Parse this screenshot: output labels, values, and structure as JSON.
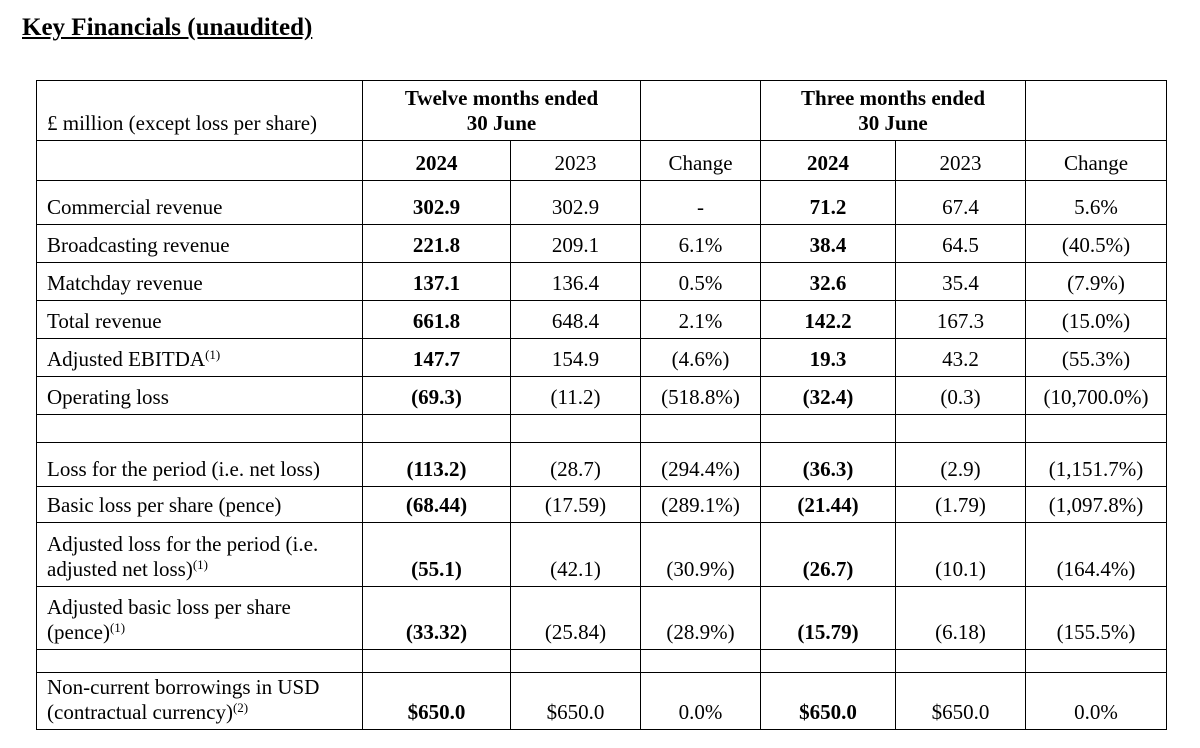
{
  "header": {
    "title": "Key Financials (unaudited)"
  },
  "table": {
    "unit_label": "£ million (except loss per share)",
    "period_headers": [
      [
        "Twelve months ended",
        "30 June"
      ],
      [
        "Three months ended",
        "30 June"
      ]
    ],
    "column_headers": [
      "2024",
      "2023",
      "Change",
      "2024",
      "2023",
      "Change"
    ],
    "groups": [
      [
        {
          "label": "Commercial revenue",
          "values": [
            "302.9",
            "302.9",
            "-",
            "71.2",
            "67.4",
            "5.6%"
          ]
        },
        {
          "label": "Broadcasting revenue",
          "values": [
            "221.8",
            "209.1",
            "6.1%",
            "38.4",
            "64.5",
            "(40.5%)"
          ]
        },
        {
          "label": "Matchday revenue",
          "values": [
            "137.1",
            "136.4",
            "0.5%",
            "32.6",
            "35.4",
            "(7.9%)"
          ]
        },
        {
          "label": "Total revenue",
          "values": [
            "661.8",
            "648.4",
            "2.1%",
            "142.2",
            "167.3",
            "(15.0%)"
          ]
        },
        {
          "label": "Adjusted EBITDA",
          "note": "(1)",
          "values": [
            "147.7",
            "154.9",
            "(4.6%)",
            "19.3",
            "43.2",
            "(55.3%)"
          ]
        },
        {
          "label": "Operating loss",
          "values": [
            "(69.3)",
            "(11.2)",
            "(518.8%)",
            "(32.4)",
            "(0.3)",
            "(10,700.0%)"
          ]
        }
      ],
      [
        {
          "label": "Loss for the period (i.e. net loss)",
          "values": [
            "(113.2)",
            "(28.7)",
            "(294.4%)",
            "(36.3)",
            "(2.9)",
            "(1,151.7%)"
          ]
        },
        {
          "label": "Basic loss per share (pence)",
          "values": [
            "(68.44)",
            "(17.59)",
            "(289.1%)",
            "(21.44)",
            "(1.79)",
            "(1,097.8%)"
          ]
        },
        {
          "label": "Adjusted loss for the period (i.e. adjusted net loss)",
          "note": "(1)",
          "values": [
            "(55.1)",
            "(42.1)",
            "(30.9%)",
            "(26.7)",
            "(10.1)",
            "(164.4%)"
          ]
        },
        {
          "label": "Adjusted basic loss per share (pence)",
          "note": "(1)",
          "values": [
            "(33.32)",
            "(25.84)",
            "(28.9%)",
            "(15.79)",
            "(6.18)",
            "(155.5%)"
          ]
        }
      ],
      [
        {
          "label": "Non-current borrowings in USD (contractual currency)",
          "note": "(2)",
          "values": [
            "$650.0",
            "$650.0",
            "0.0%",
            "$650.0",
            "$650.0",
            "0.0%"
          ]
        }
      ]
    ]
  }
}
